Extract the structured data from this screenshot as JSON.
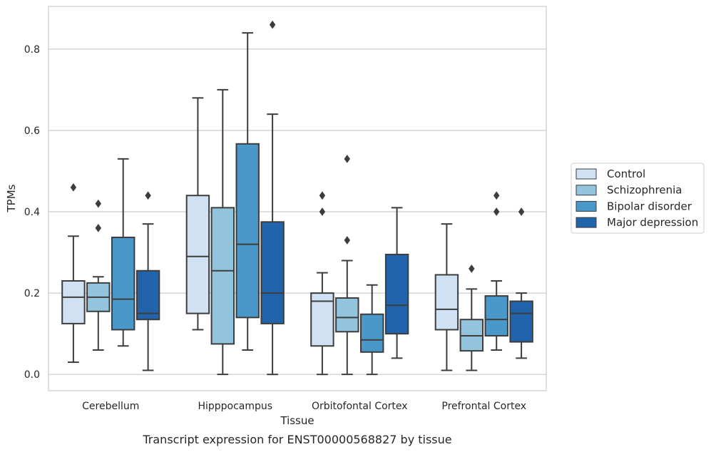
{
  "chart_data": {
    "type": "box",
    "xlabel": "Tissue",
    "ylabel": "TPMs",
    "caption": "Transcript expression for ENST00000568827 by tissue",
    "ylim": [
      -0.04,
      0.905
    ],
    "yticks": [
      0.0,
      0.2,
      0.4,
      0.6,
      0.8
    ],
    "ytick_labels": [
      "0.0",
      "0.2",
      "0.4",
      "0.6",
      "0.8"
    ],
    "grid": "horizontal",
    "legend_position": "right",
    "categories": [
      "Cerebellum",
      "Hipppocampus",
      "Orbitofontal Cortex",
      "Prefrontal Cortex"
    ],
    "series": [
      {
        "name": "Control",
        "color": "#cfe1f2",
        "boxes": [
          {
            "whislo": 0.03,
            "q1": 0.125,
            "med": 0.19,
            "q3": 0.23,
            "whishi": 0.34,
            "fliers": [
              0.46
            ]
          },
          {
            "whislo": 0.11,
            "q1": 0.15,
            "med": 0.29,
            "q3": 0.44,
            "whishi": 0.68,
            "fliers": []
          },
          {
            "whislo": 0.0,
            "q1": 0.07,
            "med": 0.18,
            "q3": 0.2,
            "whishi": 0.25,
            "fliers": [
              0.44,
              0.4
            ]
          },
          {
            "whislo": 0.01,
            "q1": 0.11,
            "med": 0.16,
            "q3": 0.245,
            "whishi": 0.37,
            "fliers": []
          }
        ]
      },
      {
        "name": "Schizophrenia",
        "color": "#93c4de",
        "boxes": [
          {
            "whislo": 0.06,
            "q1": 0.155,
            "med": 0.19,
            "q3": 0.225,
            "whishi": 0.24,
            "fliers": [
              0.42,
              0.36
            ]
          },
          {
            "whislo": 0.0,
            "q1": 0.075,
            "med": 0.255,
            "q3": 0.41,
            "whishi": 0.7,
            "fliers": []
          },
          {
            "whislo": 0.0,
            "q1": 0.105,
            "med": 0.14,
            "q3": 0.188,
            "whishi": 0.28,
            "fliers": [
              0.53,
              0.33
            ]
          },
          {
            "whislo": 0.01,
            "q1": 0.058,
            "med": 0.095,
            "q3": 0.135,
            "whishi": 0.21,
            "fliers": [
              0.26
            ]
          }
        ]
      },
      {
        "name": "Bipolar disorder",
        "color": "#4a98c9",
        "boxes": [
          {
            "whislo": 0.07,
            "q1": 0.11,
            "med": 0.185,
            "q3": 0.337,
            "whishi": 0.53,
            "fliers": []
          },
          {
            "whislo": 0.06,
            "q1": 0.14,
            "med": 0.32,
            "q3": 0.567,
            "whishi": 0.84,
            "fliers": []
          },
          {
            "whislo": 0.0,
            "q1": 0.055,
            "med": 0.085,
            "q3": 0.148,
            "whishi": 0.22,
            "fliers": []
          },
          {
            "whislo": 0.06,
            "q1": 0.095,
            "med": 0.135,
            "q3": 0.193,
            "whishi": 0.23,
            "fliers": [
              0.44,
              0.4
            ]
          }
        ]
      },
      {
        "name": "Major depression",
        "color": "#2164ab",
        "boxes": [
          {
            "whislo": 0.01,
            "q1": 0.135,
            "med": 0.15,
            "q3": 0.255,
            "whishi": 0.37,
            "fliers": [
              0.44
            ]
          },
          {
            "whislo": 0.0,
            "q1": 0.125,
            "med": 0.2,
            "q3": 0.375,
            "whishi": 0.64,
            "fliers": [
              0.86
            ]
          },
          {
            "whislo": 0.04,
            "q1": 0.1,
            "med": 0.17,
            "q3": 0.295,
            "whishi": 0.41,
            "fliers": []
          },
          {
            "whislo": 0.04,
            "q1": 0.08,
            "med": 0.15,
            "q3": 0.18,
            "whishi": 0.2,
            "fliers": [
              0.4
            ]
          }
        ]
      }
    ]
  }
}
